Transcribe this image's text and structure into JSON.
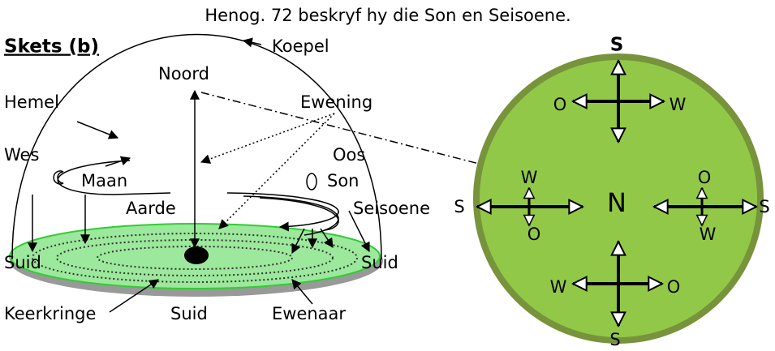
{
  "header": {
    "title": "Henog. 72 beskryf hy die Son en Seisoene."
  },
  "sketch": {
    "label": "Skets (b)",
    "labels": {
      "koepel": "Koepel",
      "noord": "Noord",
      "hemel": "Hemel",
      "ewening": "Ewening",
      "wes": "Wes",
      "oos": "Oos",
      "maan": "Maan",
      "son": "Son",
      "aarde": "Aarde",
      "seisoene": "Seisoene",
      "suid_left": "Suid",
      "suid_right": "Suid",
      "keerkringe": "Keerkringe",
      "suid_bottom": "Suid",
      "ewenaar": "Ewenaar"
    }
  },
  "compass": {
    "top": "S",
    "top_left": "O",
    "top_right": "W",
    "left": "S",
    "left_upper": "W",
    "left_lower": "O",
    "center": "N",
    "right_upper": "O",
    "right_lower": "W",
    "right": "S",
    "bottom_left": "W",
    "bottom_right": "O",
    "bottom": "S"
  }
}
